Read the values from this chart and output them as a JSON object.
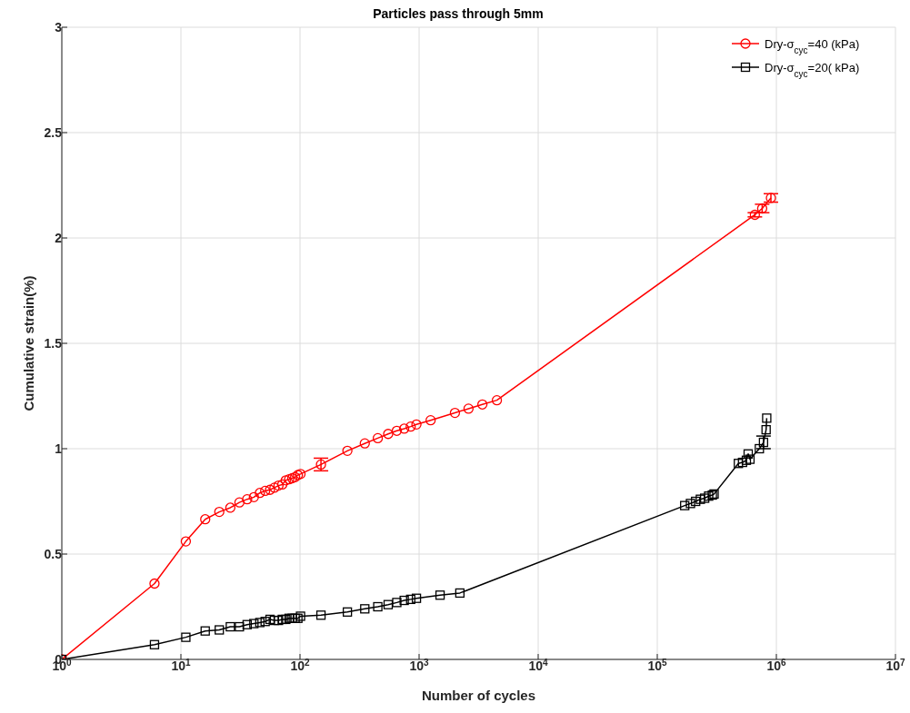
{
  "chart_data": {
    "type": "line",
    "title": "Particles pass through 5mm",
    "xlabel": "Number of cycles",
    "ylabel": "Cumulative strain(%)",
    "log": "x",
    "grid": true,
    "legend": "top right",
    "line_style": "solid",
    "xlim": [
      1,
      10000000
    ],
    "xticks": [
      {
        "value": 1,
        "label": "10$^{0}$"
      },
      {
        "value": 10,
        "label": "10$^{1}$"
      },
      {
        "value": 100,
        "label": "10$^{2}$"
      },
      {
        "value": 1000,
        "label": "10$^{3}$"
      },
      {
        "value": 10000,
        "label": "10$^{4}$"
      },
      {
        "value": 100000,
        "label": "10$^{5}$"
      },
      {
        "value": 1000000,
        "label": "10$^{6}$"
      },
      {
        "value": 10000000,
        "label": "10$^{7}$"
      }
    ],
    "ylim": [
      0,
      3
    ],
    "yticks": [
      0,
      0.5,
      1,
      1.5,
      2,
      2.5,
      3
    ],
    "series": [
      {
        "name": "Dry-σ$_{cyc}$=40 (kPa)",
        "color": "#ff0000",
        "marker": "circle",
        "x": [
          1,
          6,
          11,
          16,
          21,
          26,
          31,
          36,
          41,
          46,
          51,
          56,
          61,
          66,
          71,
          76,
          81,
          86,
          91,
          96,
          101,
          150,
          250,
          350,
          450,
          550,
          650,
          750,
          850,
          950,
          1250,
          2000,
          2600,
          3400,
          4500,
          660000,
          760000,
          900000
        ],
        "values": [
          0,
          0.36,
          0.56,
          0.665,
          0.7,
          0.72,
          0.745,
          0.76,
          0.77,
          0.79,
          0.8,
          0.805,
          0.815,
          0.825,
          0.83,
          0.85,
          0.855,
          0.86,
          0.865,
          0.875,
          0.88,
          0.925,
          0.99,
          1.025,
          1.05,
          1.07,
          1.085,
          1.095,
          1.105,
          1.115,
          1.135,
          1.17,
          1.19,
          1.21,
          1.23,
          2.11,
          2.14,
          2.19
        ],
        "errors": [
          null,
          null,
          null,
          null,
          null,
          null,
          null,
          null,
          null,
          null,
          null,
          null,
          null,
          null,
          null,
          null,
          null,
          null,
          null,
          null,
          null,
          0.03,
          null,
          null,
          null,
          null,
          null,
          null,
          null,
          null,
          null,
          null,
          null,
          null,
          null,
          0.01,
          0.02,
          0.02
        ]
      },
      {
        "name": "Dry-σ$_{cyc}$=20( kPa)",
        "color": "#000000",
        "marker": "square",
        "x": [
          1,
          6,
          11,
          16,
          21,
          26,
          31,
          36,
          41,
          46,
          51,
          56,
          61,
          66,
          71,
          76,
          81,
          86,
          91,
          96,
          101,
          150,
          250,
          350,
          450,
          550,
          650,
          750,
          850,
          950,
          1500,
          2200,
          170000,
          190000,
          210000,
          230000,
          250000,
          270000,
          290000,
          300000,
          480000,
          520000,
          560000,
          580000,
          600000,
          720000,
          780000,
          820000,
          830000
        ],
        "values": [
          0,
          0.07,
          0.105,
          0.135,
          0.14,
          0.155,
          0.155,
          0.165,
          0.17,
          0.175,
          0.18,
          0.19,
          0.185,
          0.185,
          0.19,
          0.19,
          0.195,
          0.195,
          0.195,
          0.195,
          0.205,
          0.21,
          0.225,
          0.24,
          0.25,
          0.26,
          0.27,
          0.28,
          0.285,
          0.29,
          0.305,
          0.315,
          0.73,
          0.74,
          0.75,
          0.76,
          0.765,
          0.775,
          0.78,
          0.785,
          0.93,
          0.935,
          0.945,
          0.975,
          0.95,
          1.0,
          1.03,
          1.09,
          1.145
        ],
        "errors": [
          null,
          null,
          null,
          null,
          null,
          null,
          null,
          null,
          null,
          null,
          null,
          null,
          null,
          null,
          null,
          null,
          null,
          null,
          null,
          null,
          null,
          null,
          null,
          null,
          null,
          null,
          null,
          null,
          null,
          null,
          null,
          null,
          null,
          null,
          null,
          null,
          null,
          null,
          null,
          null,
          null,
          null,
          null,
          null,
          null,
          null,
          0.03,
          null,
          null
        ]
      }
    ]
  }
}
